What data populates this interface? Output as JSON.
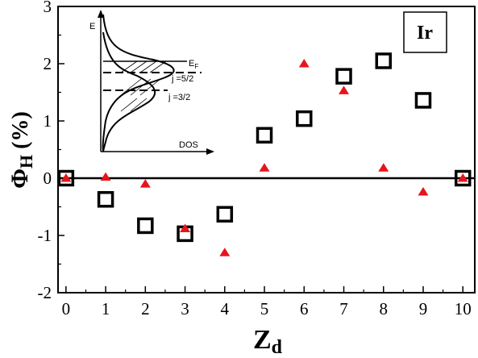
{
  "chart_data": {
    "type": "scatter",
    "title": "",
    "label_box": "Ir",
    "xlabel_main": "Z",
    "xlabel_sub": "d",
    "ylabel_main": "Φ",
    "ylabel_sub": "H",
    "ylabel_suffix": " (%)",
    "xlim": [
      -0.2,
      10.3
    ],
    "ylim": [
      -2,
      3
    ],
    "xticks": [
      "0",
      "1",
      "2",
      "3",
      "4",
      "5",
      "6",
      "7",
      "8",
      "9",
      "10"
    ],
    "yticks": [
      "-2",
      "-1",
      "0",
      "1",
      "2",
      "3"
    ],
    "reference_line_y": 0,
    "series": [
      {
        "marker": "open-square",
        "color": "#000000",
        "points": [
          {
            "x": 0,
            "y": 0.0
          },
          {
            "x": 1,
            "y": -0.37
          },
          {
            "x": 2,
            "y": -0.83
          },
          {
            "x": 3,
            "y": -0.97
          },
          {
            "x": 4,
            "y": -0.63
          },
          {
            "x": 5,
            "y": 0.75
          },
          {
            "x": 6,
            "y": 1.04
          },
          {
            "x": 7,
            "y": 1.78
          },
          {
            "x": 8,
            "y": 2.05
          },
          {
            "x": 9,
            "y": 1.36
          },
          {
            "x": 10,
            "y": 0.0
          }
        ]
      },
      {
        "marker": "filled-triangle",
        "color": "#e8141c",
        "points": [
          {
            "x": 0,
            "y": 0.0
          },
          {
            "x": 1,
            "y": 0.02
          },
          {
            "x": 2,
            "y": -0.1
          },
          {
            "x": 3,
            "y": -0.88
          },
          {
            "x": 4,
            "y": -1.3
          },
          {
            "x": 5,
            "y": 0.18
          },
          {
            "x": 6,
            "y": 2.0
          },
          {
            "x": 7,
            "y": 1.53
          },
          {
            "x": 8,
            "y": 0.18
          },
          {
            "x": 9,
            "y": -0.24
          },
          {
            "x": 10,
            "y": 0.0
          }
        ]
      }
    ],
    "inset": {
      "y_axis_label": "E",
      "x_axis_label": "DOS",
      "fermi_label": "E",
      "fermi_sub": "F",
      "j52_label": "j =5/2",
      "j32_label": "j =3/2"
    }
  }
}
